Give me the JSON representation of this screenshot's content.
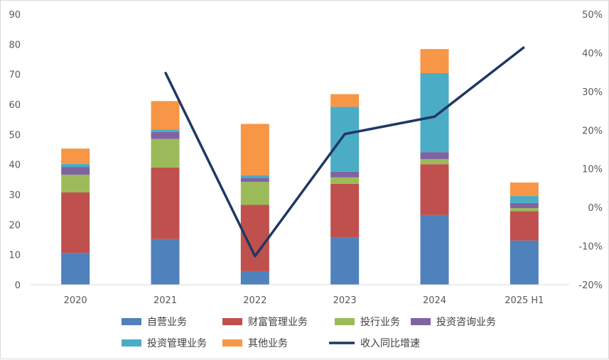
{
  "chart_data": {
    "type": "bar",
    "stacked": true,
    "categories": [
      "2020",
      "2021",
      "2022",
      "2023",
      "2024",
      "2025 H1"
    ],
    "y_left": {
      "min": 0,
      "max": 90,
      "step": 10,
      "ticks": [
        "0",
        "10",
        "20",
        "30",
        "40",
        "50",
        "60",
        "70",
        "80",
        "90"
      ]
    },
    "y_right": {
      "min": -20,
      "max": 50,
      "step": 10,
      "ticks": [
        "-20%",
        "-10%",
        "0%",
        "10%",
        "20%",
        "30%",
        "40%",
        "50%"
      ]
    },
    "series": [
      {
        "name": "自营业务",
        "color": "#4F81BD",
        "values": [
          10.6,
          15.2,
          4.5,
          15.8,
          23.2,
          14.7
        ]
      },
      {
        "name": "财富管理业务",
        "color": "#C0504D",
        "values": [
          20.1,
          23.8,
          22.1,
          17.8,
          16.9,
          9.8
        ]
      },
      {
        "name": "投行业务",
        "color": "#9BBB59",
        "values": [
          5.9,
          9.5,
          7.6,
          2.1,
          1.7,
          1.0
        ]
      },
      {
        "name": "投资咨询业务",
        "color": "#8064A2",
        "values": [
          2.6,
          2.3,
          1.4,
          1.9,
          2.3,
          1.7
        ]
      },
      {
        "name": "投资管理业务",
        "color": "#4BACC6",
        "values": [
          1.0,
          0.8,
          0.8,
          21.6,
          26.3,
          2.3
        ]
      },
      {
        "name": "其他业务",
        "color": "#F79646",
        "values": [
          5.1,
          9.5,
          17.1,
          4.2,
          8.0,
          4.5
        ]
      }
    ],
    "line_series": {
      "name": "收入同比增速",
      "color": "#1F3864",
      "axis": "right",
      "values": [
        null,
        35,
        -12.6,
        19,
        23.5,
        41.5
      ]
    },
    "legend_position": "bottom",
    "grid": false
  }
}
